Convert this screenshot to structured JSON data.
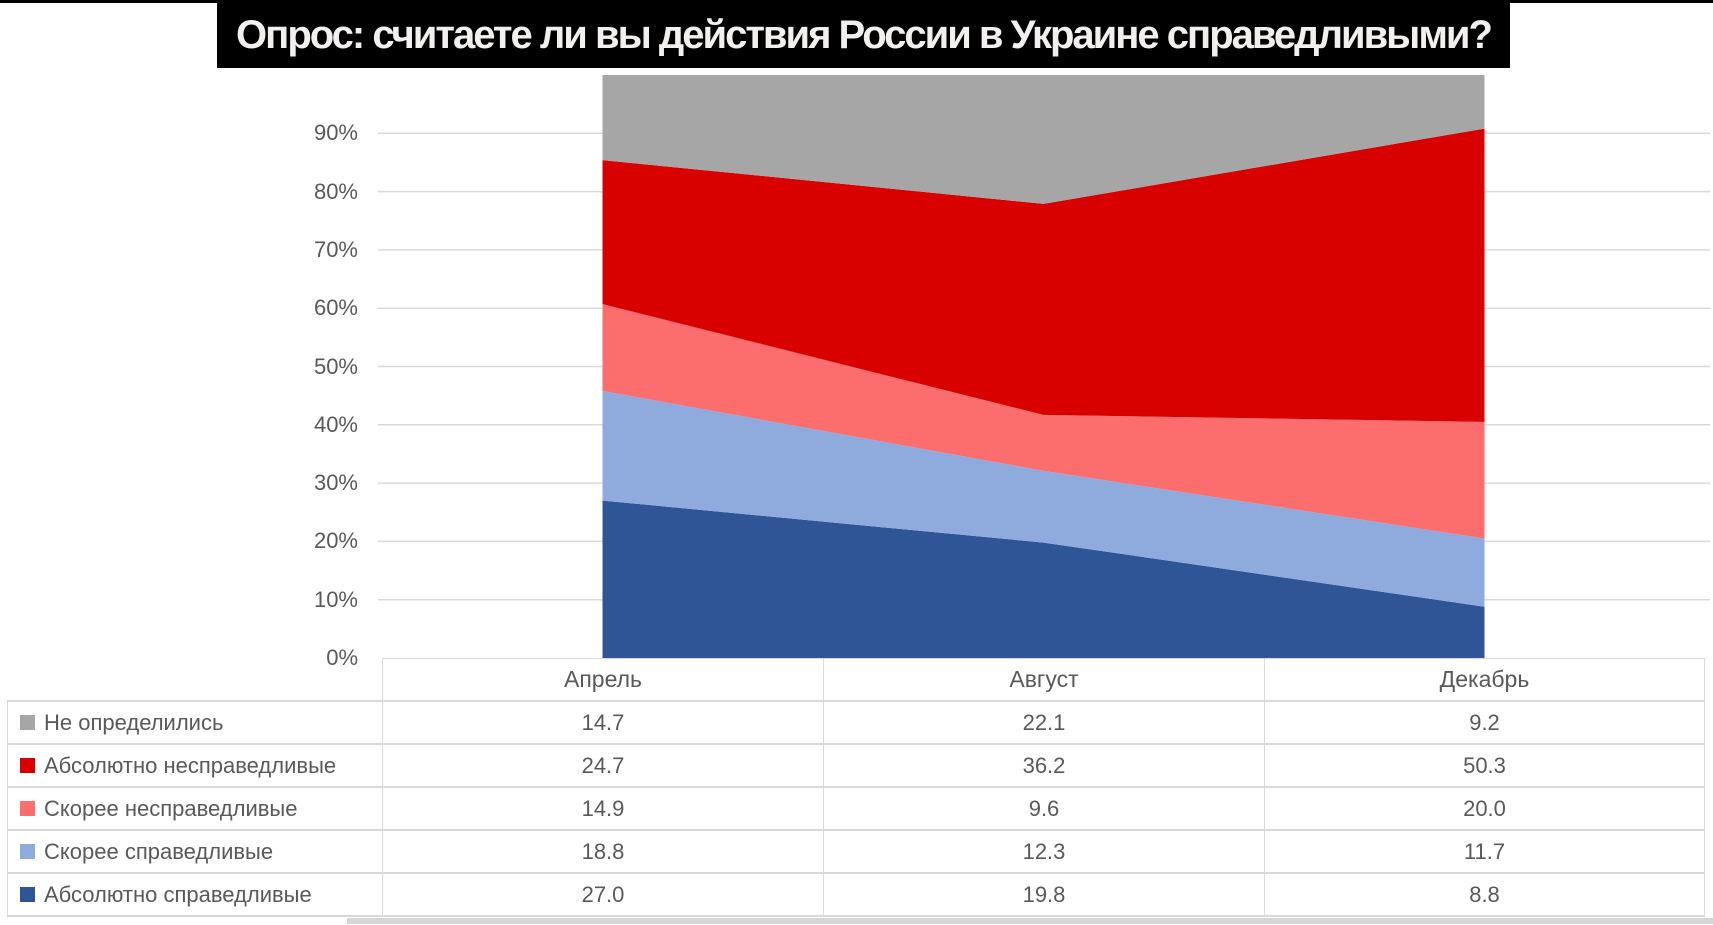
{
  "chart_data": {
    "type": "area",
    "stacked": true,
    "title": "Опрос: считаете ли вы действия России в Украине справедливыми?",
    "categories": [
      "Апрель",
      "Август",
      "Декабрь"
    ],
    "series": [
      {
        "name": "Не определились",
        "color": "#A6A6A6",
        "values": [
          14.7,
          22.1,
          9.2
        ]
      },
      {
        "name": "Абсолютно несправедливые",
        "color": "#D90000",
        "values": [
          24.7,
          36.2,
          50.3
        ]
      },
      {
        "name": "Скорее несправедливые",
        "color": "#FC6E6E",
        "values": [
          14.9,
          9.6,
          20.0
        ]
      },
      {
        "name": "Скорее справедливые",
        "color": "#8FAADC",
        "values": [
          18.8,
          12.3,
          11.7
        ]
      },
      {
        "name": "Абсолютно справедливые",
        "color": "#2F5596",
        "values": [
          27.0,
          19.8,
          8.8
        ]
      }
    ],
    "stack_order_bottom_to_top": [
      "Абсолютно справедливые",
      "Скорее справедливые",
      "Скорее несправедливые",
      "Абсолютно несправедливые",
      "Не определились"
    ],
    "y_ticks": [
      "0%",
      "10%",
      "20%",
      "30%",
      "40%",
      "50%",
      "60%",
      "70%",
      "80%",
      "90%"
    ],
    "ylim": [
      0,
      100
    ],
    "grid": true,
    "value_format": "one_decimal",
    "legend_position": "table-below"
  },
  "colors": {
    "title_bg": "#000000",
    "title_text": "#F2EFEF",
    "gridline": "#D9D9D9",
    "axis_text": "#595959",
    "table_border": "#D9D9D9",
    "bottom_strip": "#D6D6D6"
  }
}
